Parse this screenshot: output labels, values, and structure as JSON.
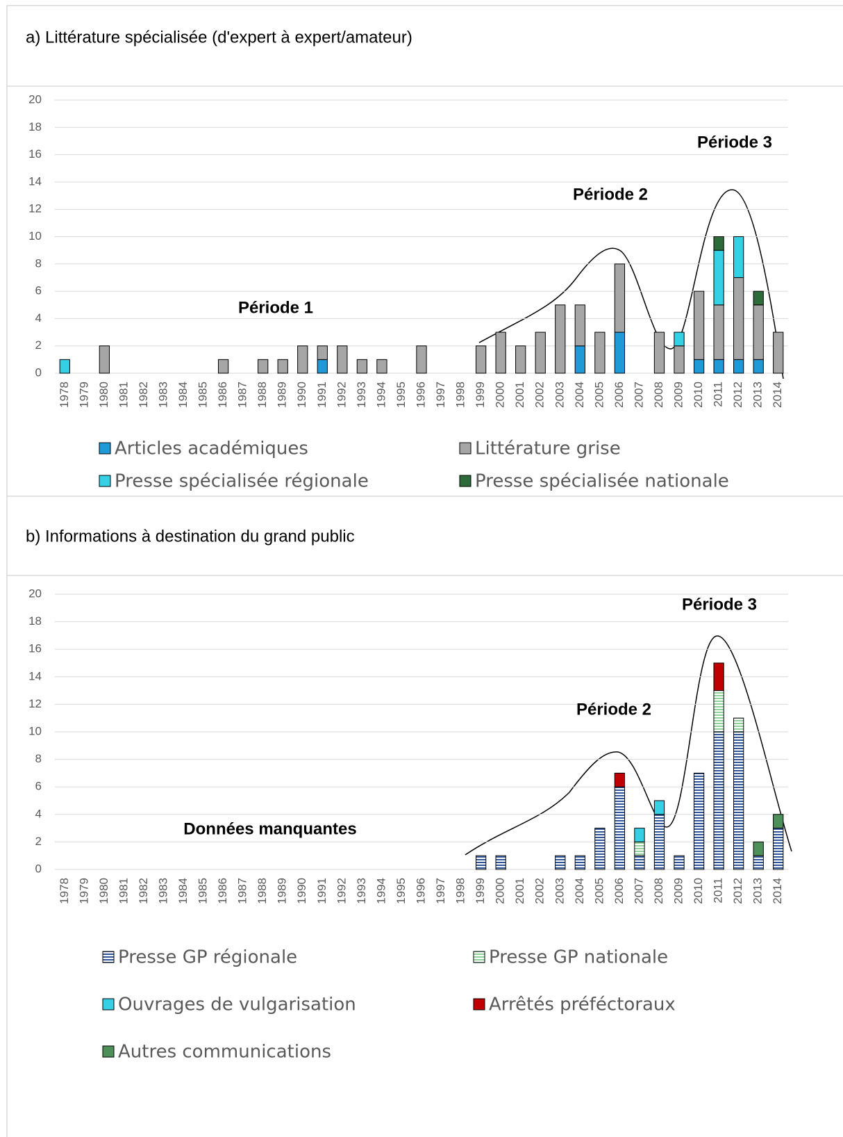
{
  "chart_data": [
    {
      "type": "stacked-bar",
      "title": "a) Littérature spécialisée (d'expert à expert/amateur)",
      "categories": [
        "1978",
        "1979",
        "1980",
        "1981",
        "1982",
        "1983",
        "1984",
        "1985",
        "1986",
        "1987",
        "1988",
        "1989",
        "1990",
        "1991",
        "1992",
        "1993",
        "1994",
        "1995",
        "1996",
        "1997",
        "1998",
        "1999",
        "2000",
        "2001",
        "2002",
        "2003",
        "2004",
        "2005",
        "2006",
        "2007",
        "2008",
        "2009",
        "2010",
        "2011",
        "2012",
        "2013",
        "2014"
      ],
      "series": [
        {
          "name": "Articles académiques",
          "color": "#1f9ad6",
          "values": [
            0,
            0,
            0,
            0,
            0,
            0,
            0,
            0,
            0,
            0,
            0,
            0,
            0,
            1,
            0,
            0,
            0,
            0,
            0,
            0,
            0,
            0,
            0,
            0,
            0,
            0,
            2,
            0,
            3,
            0,
            0,
            0,
            1,
            1,
            1,
            1,
            0
          ]
        },
        {
          "name": "Littérature grise",
          "color": "#a6a6a6",
          "values": [
            0,
            0,
            2,
            0,
            0,
            0,
            0,
            0,
            1,
            0,
            1,
            1,
            2,
            1,
            2,
            1,
            1,
            0,
            2,
            0,
            0,
            2,
            3,
            2,
            3,
            5,
            3,
            3,
            5,
            0,
            3,
            2,
            5,
            4,
            6,
            4,
            3
          ]
        },
        {
          "name": "Presse spécialisée régionale",
          "color": "#36d0e4",
          "values": [
            1,
            0,
            0,
            0,
            0,
            0,
            0,
            0,
            0,
            0,
            0,
            0,
            0,
            0,
            0,
            0,
            0,
            0,
            0,
            0,
            0,
            0,
            0,
            0,
            0,
            0,
            0,
            0,
            0,
            0,
            0,
            1,
            0,
            4,
            3,
            0,
            0
          ]
        },
        {
          "name": "Presse spécialisée nationale",
          "color": "#2e6b3b",
          "values": [
            0,
            0,
            0,
            0,
            0,
            0,
            0,
            0,
            0,
            0,
            0,
            0,
            0,
            0,
            0,
            0,
            0,
            0,
            0,
            0,
            0,
            0,
            0,
            0,
            0,
            0,
            0,
            0,
            0,
            0,
            0,
            0,
            0,
            1,
            0,
            1,
            0
          ]
        }
      ],
      "annotations": [
        "Période 1",
        "Période 2",
        "Période 3"
      ],
      "ylim": [
        0,
        20
      ],
      "yticks": [
        0,
        2,
        4,
        6,
        8,
        10,
        12,
        14,
        16,
        18,
        20
      ],
      "grid": true
    },
    {
      "type": "stacked-bar",
      "title": "b) Informations à destination du grand public",
      "categories": [
        "1978",
        "1979",
        "1980",
        "1981",
        "1982",
        "1983",
        "1984",
        "1985",
        "1986",
        "1987",
        "1988",
        "1989",
        "1990",
        "1991",
        "1992",
        "1993",
        "1994",
        "1995",
        "1996",
        "1997",
        "1998",
        "1999",
        "2000",
        "2001",
        "2002",
        "2003",
        "2004",
        "2005",
        "2006",
        "2007",
        "2008",
        "2009",
        "2010",
        "2011",
        "2012",
        "2013",
        "2014"
      ],
      "series": [
        {
          "name": "Presse GP régionale",
          "color": "#2f5597",
          "hatch": true,
          "values": [
            0,
            0,
            0,
            0,
            0,
            0,
            0,
            0,
            0,
            0,
            0,
            0,
            0,
            0,
            0,
            0,
            0,
            0,
            0,
            0,
            0,
            1,
            1,
            0,
            0,
            1,
            1,
            3,
            6,
            1,
            4,
            1,
            7,
            10,
            10,
            1,
            3
          ]
        },
        {
          "name": "Presse GP nationale",
          "color": "#8fcf9a",
          "hatch": true,
          "values": [
            0,
            0,
            0,
            0,
            0,
            0,
            0,
            0,
            0,
            0,
            0,
            0,
            0,
            0,
            0,
            0,
            0,
            0,
            0,
            0,
            0,
            0,
            0,
            0,
            0,
            0,
            0,
            0,
            0,
            1,
            0,
            0,
            0,
            3,
            1,
            0,
            0
          ]
        },
        {
          "name": "Ouvrages de vulgarisation",
          "color": "#36d0e4",
          "values": [
            0,
            0,
            0,
            0,
            0,
            0,
            0,
            0,
            0,
            0,
            0,
            0,
            0,
            0,
            0,
            0,
            0,
            0,
            0,
            0,
            0,
            0,
            0,
            0,
            0,
            0,
            0,
            0,
            0,
            1,
            1,
            0,
            0,
            0,
            0,
            0,
            0
          ]
        },
        {
          "name": "Arrêtés préféctoraux",
          "color": "#c00000",
          "values": [
            0,
            0,
            0,
            0,
            0,
            0,
            0,
            0,
            0,
            0,
            0,
            0,
            0,
            0,
            0,
            0,
            0,
            0,
            0,
            0,
            0,
            0,
            0,
            0,
            0,
            0,
            0,
            0,
            1,
            0,
            0,
            0,
            0,
            2,
            0,
            0,
            0
          ]
        },
        {
          "name": "Autres communications",
          "color": "#4e8f5a",
          "values": [
            0,
            0,
            0,
            0,
            0,
            0,
            0,
            0,
            0,
            0,
            0,
            0,
            0,
            0,
            0,
            0,
            0,
            0,
            0,
            0,
            0,
            0,
            0,
            0,
            0,
            0,
            0,
            0,
            0,
            0,
            0,
            0,
            0,
            0,
            0,
            1,
            1
          ]
        }
      ],
      "annotations": [
        "Données manquantes",
        "Période 2",
        "Période 3"
      ],
      "ylim": [
        0,
        20
      ],
      "yticks": [
        0,
        2,
        4,
        6,
        8,
        10,
        12,
        14,
        16,
        18,
        20
      ],
      "grid": true
    }
  ]
}
